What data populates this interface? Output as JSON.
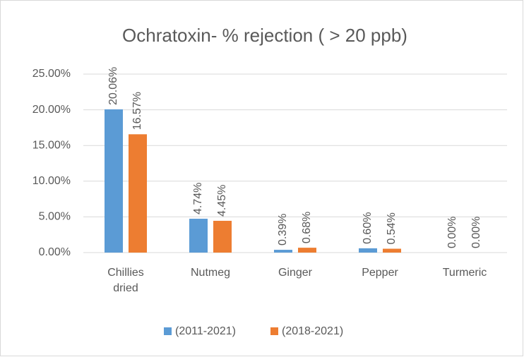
{
  "chart_data": {
    "type": "bar",
    "title": "Ochratoxin- % rejection ( > 20 ppb)",
    "categories": [
      "Chillies dried",
      "Nutmeg",
      "Ginger",
      "Pepper",
      "Turmeric"
    ],
    "series": [
      {
        "name": "(2011-2021)",
        "color": "#5b9bd5",
        "values": [
          20.06,
          4.74,
          0.39,
          0.6,
          0.0
        ],
        "value_labels": [
          "20.06%",
          "4.74%",
          "0.39%",
          "0.60%",
          "0.00%"
        ]
      },
      {
        "name": "(2018-2021)",
        "color": "#ed7d31",
        "values": [
          16.57,
          4.45,
          0.68,
          0.54,
          0.0
        ],
        "value_labels": [
          "16.57%",
          "4.45%",
          "0.68%",
          "0.54%",
          "0.00%"
        ]
      }
    ],
    "ylim": [
      0,
      25
    ],
    "yticks": [
      {
        "value": 0,
        "label": "0.00%"
      },
      {
        "value": 5,
        "label": "5.00%"
      },
      {
        "value": 10,
        "label": "10.00%"
      },
      {
        "value": 15,
        "label": "15.00%"
      },
      {
        "value": 20,
        "label": "20.00%"
      },
      {
        "value": 25,
        "label": "25.00%"
      }
    ],
    "grid": true,
    "legend": "bottom"
  }
}
